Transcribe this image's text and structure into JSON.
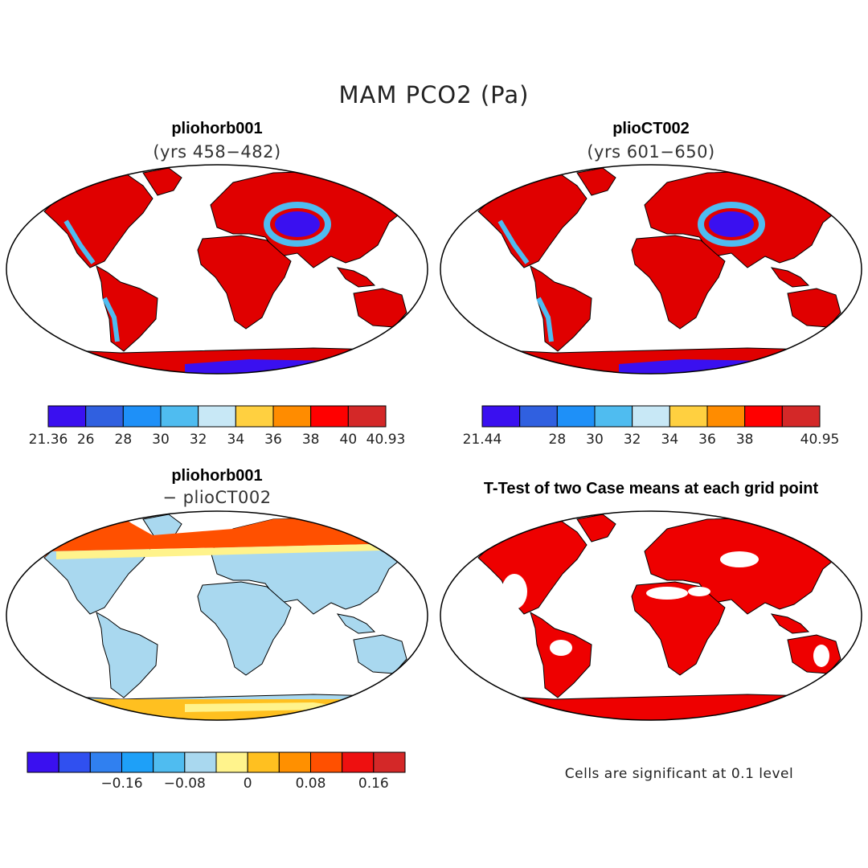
{
  "title": "MAM PCO2 (Pa)",
  "panels": [
    {
      "name": "pliohorb001",
      "sub": "(yrs 458−482)",
      "fill": "#e00000",
      "fill2": "#cc2a2a",
      "polar": "#3018e8"
    },
    {
      "name": "plioCT002",
      "sub": "(yrs 601−650)",
      "fill": "#e00000",
      "fill2": "#cc2a2a",
      "polar": "#3018e8"
    },
    {
      "name": "pliohorb001",
      "sub": "− plioCT002",
      "fill": "#a9d8ef",
      "fill2": "#fff38c",
      "polar": "#ffb020"
    },
    {
      "name": "T-Test of two Case means at each grid point",
      "sub": "",
      "fill": "#ee0000",
      "fill2": "#ee0000",
      "polar": "#ee0000"
    }
  ],
  "colorbars": [
    {
      "colors": [
        "#3a10f0",
        "#3060e0",
        "#1e90f8",
        "#4fbcf0",
        "#c8e8f6",
        "#ffd040",
        "#ff8c00",
        "#ff0000",
        "#d42828"
      ],
      "labels": [
        "21.36",
        "26",
        "28",
        "30",
        "32",
        "34",
        "36",
        "38",
        "40",
        "40.93"
      ]
    },
    {
      "colors": [
        "#3a10f0",
        "#3060e0",
        "#1e90f8",
        "#4fbcf0",
        "#c8e8f6",
        "#ffd040",
        "#ff8c00",
        "#ff0000",
        "#d42828"
      ],
      "labels": [
        "21.44",
        "",
        "28",
        "30",
        "32",
        "34",
        "36",
        "38",
        "",
        "40.95"
      ]
    },
    {
      "colors": [
        "#3a10f0",
        "#3050f0",
        "#3080f0",
        "#1ea0f8",
        "#4fbcf0",
        "#a9d8ef",
        "#fff38c",
        "#ffc020",
        "#ff9000",
        "#ff5000",
        "#ee1010",
        "#d42828"
      ],
      "labels": [
        "",
        "−0.16",
        "−0.08",
        "0",
        "0.08",
        "0.16"
      ]
    }
  ],
  "note": "Cells are significant at 0.1 level"
}
